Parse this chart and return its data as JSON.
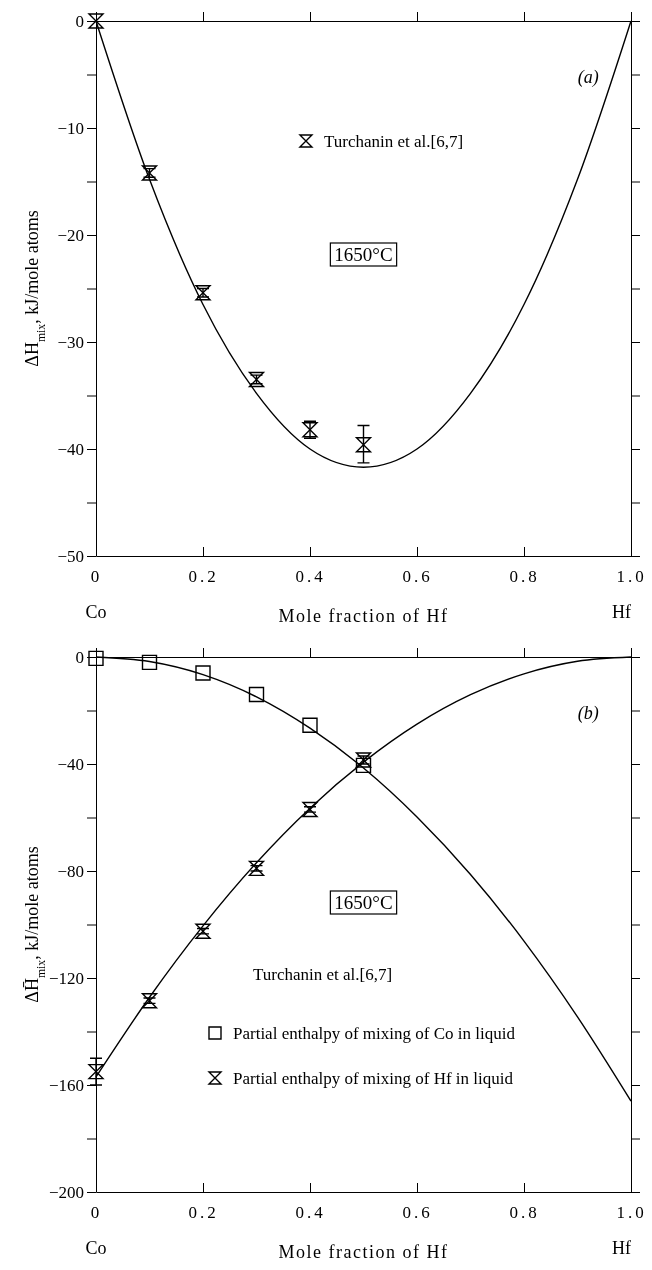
{
  "chart_data": [
    {
      "type": "scatter",
      "xlabel": "Mole fraction of Hf",
      "ylabel": "ΔH$_{mix}$, kJ/mole atoms",
      "xlim": [
        0,
        1
      ],
      "ylim": [
        -50,
        0
      ],
      "xticks": [
        0,
        0.2,
        0.4,
        0.6,
        0.8,
        {
          "value": 1,
          "label": "1.0"
        }
      ],
      "yticks": [
        {
          "value": -50,
          "label": "−50"
        },
        {
          "value": -45,
          "label": null
        },
        {
          "value": -40,
          "label": "−40"
        },
        {
          "value": -35,
          "label": null
        },
        {
          "value": -30,
          "label": "−30"
        },
        {
          "value": -25,
          "label": null
        },
        {
          "value": -20,
          "label": "−20"
        },
        {
          "value": -15,
          "label": null
        },
        {
          "value": -10,
          "label": "−10"
        },
        {
          "value": -5,
          "label": null
        },
        0
      ],
      "grid": false,
      "legend": "top",
      "series": [
        {
          "type": "line",
          "color": "#000000",
          "line_style": "solid",
          "x": [
            0,
            0.1,
            0.2,
            0.3,
            0.4,
            0.5,
            0.6,
            0.7,
            0.8,
            0.9,
            1
          ],
          "values": [
            0,
            -14.8,
            -26.5,
            -34.8,
            -40.0,
            -41.7,
            -40.0,
            -34.8,
            -26.5,
            -14.8,
            0
          ]
        },
        {
          "name": "Turchanin et al.[6,7]",
          "color": "#000000",
          "x": [
            0,
            0.1,
            0.2,
            0.3,
            0.4,
            0.5
          ],
          "values": [
            0,
            -14.2,
            -25.4,
            -33.5,
            -38.2,
            -39.6
          ],
          "errors": [
            null,
            0.4,
            0.4,
            0.4,
            0.8,
            [
              -41.3,
              -37.8
            ]
          ]
        }
      ],
      "annotations": [
        "(a)",
        "1650°C",
        "Co",
        "Hf"
      ]
    },
    {
      "type": "scatter",
      "xlabel": "Mole fraction of Hf",
      "ylabel": "ΔH̄$_{mix}$, kJ/mole atoms",
      "xlim": [
        0,
        1
      ],
      "ylim": [
        -200,
        0
      ],
      "xticks": [
        0,
        0.2,
        0.4,
        0.6,
        0.8,
        {
          "value": 1,
          "label": "1.0"
        }
      ],
      "yticks": [
        {
          "value": -200,
          "label": "−200"
        },
        {
          "value": -180,
          "label": null
        },
        {
          "value": -160,
          "label": "−160"
        },
        {
          "value": -140,
          "label": null
        },
        {
          "value": -120,
          "label": "−120"
        },
        {
          "value": -100,
          "label": null
        },
        {
          "value": -80,
          "label": "−80"
        },
        {
          "value": -60,
          "label": null
        },
        {
          "value": -40,
          "label": "−40"
        },
        {
          "value": -20,
          "label": null
        },
        0
      ],
      "grid": false,
      "legend": "bottom right",
      "legend_title": "Turchanin et al.[6,7]",
      "series": [
        {
          "type": "line",
          "color": "#000000",
          "line_style": "solid",
          "x": [
            0,
            0.1,
            0.2,
            0.3,
            0.4,
            0.5,
            0.6,
            0.7,
            0.8,
            0.9,
            1
          ],
          "values": [
            0,
            -1.7,
            -6.6,
            -14.9,
            -26.6,
            -41.5,
            -59.8,
            -81.3,
            -106.2,
            -134.5,
            -166
          ]
        },
        {
          "type": "line",
          "color": "#000000",
          "line_style": "solid",
          "x": [
            0,
            0.1,
            0.2,
            0.3,
            0.4,
            0.5,
            0.6,
            0.7,
            0.8,
            0.9,
            1
          ],
          "values": [
            -157,
            -127.2,
            -100.5,
            -76.9,
            -56.5,
            -39.3,
            -25.1,
            -14.1,
            -6.3,
            -1.6,
            0
          ]
        },
        {
          "name": "Partial enthalpy of mixing of Co in liquid",
          "color": "#000000",
          "marker": "square",
          "x": [
            0,
            0.1,
            0.2,
            0.3,
            0.4,
            0.5
          ],
          "values": [
            -0.5,
            -2,
            -6,
            -14,
            -25.5,
            -40.5
          ]
        },
        {
          "name": "Partial enthalpy of mixing of Hf in liquid",
          "color": "#000000",
          "x": [
            0,
            0.1,
            0.2,
            0.3,
            0.4,
            0.5
          ],
          "values": [
            -155,
            -128.5,
            -102.5,
            -79,
            -57,
            -38.5
          ],
          "errors": [
            5,
            1,
            1,
            1,
            1,
            1.5
          ]
        }
      ],
      "annotations": [
        "(b)",
        "1650°C",
        "Co",
        "Hf"
      ]
    }
  ]
}
